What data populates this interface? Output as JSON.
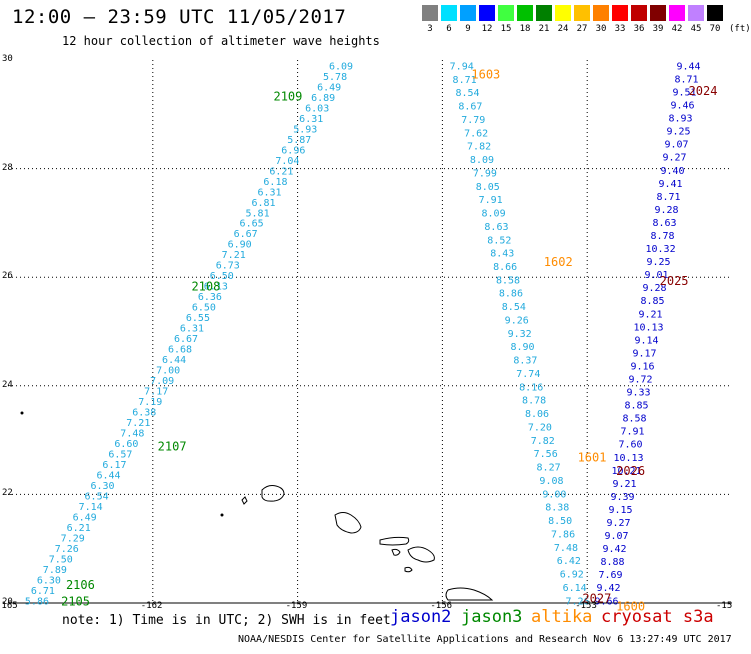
{
  "header": {
    "title": "12:00 — 23:59 UTC 11/05/2017",
    "subtitle": "12 hour collection of altimeter wave heights"
  },
  "color_scale": {
    "unit": "(ft)",
    "bins": [
      {
        "label": "3",
        "color": "#808080"
      },
      {
        "label": "6",
        "color": "#00e0ff"
      },
      {
        "label": "9",
        "color": "#00a0ff"
      },
      {
        "label": "12",
        "color": "#0000ff"
      },
      {
        "label": "15",
        "color": "#40ff40"
      },
      {
        "label": "18",
        "color": "#00c000"
      },
      {
        "label": "21",
        "color": "#008000"
      },
      {
        "label": "24",
        "color": "#ffff00"
      },
      {
        "label": "27",
        "color": "#ffc000"
      },
      {
        "label": "30",
        "color": "#ff8000"
      },
      {
        "label": "33",
        "color": "#ff0000"
      },
      {
        "label": "36",
        "color": "#c00000"
      },
      {
        "label": "39",
        "color": "#800000"
      },
      {
        "label": "42",
        "color": "#ff00ff"
      },
      {
        "label": "45",
        "color": "#c080ff"
      },
      {
        "label": "70",
        "color": "#000000"
      }
    ]
  },
  "axes": {
    "lat_labels": [
      "30",
      "28",
      "26",
      "24",
      "22",
      "20"
    ],
    "lon_labels": [
      "-165",
      "-162",
      "-159",
      "-156",
      "-153",
      "-15"
    ]
  },
  "chart_data": {
    "type": "scatter",
    "x_range_lon": [
      -165,
      -150
    ],
    "y_range_lat": [
      20,
      30
    ],
    "grid": true,
    "tracks": [
      {
        "color": "#22aadd",
        "lon_top": -158.1,
        "lon_bottom": -164.4,
        "values": [
          "6.09",
          "5.78",
          "6.49",
          "6.89",
          "6.03",
          "6.31",
          "5.93",
          "5.87",
          "6.96",
          "7.04",
          "6.21",
          "6.18",
          "6.31",
          "6.81",
          "5.81",
          "6.65",
          "6.67",
          "6.90",
          "7.21",
          "6.73",
          "6.50",
          "6.13",
          "6.36",
          "6.50",
          "6.55",
          "6.31",
          "6.67",
          "6.68",
          "6.44",
          "7.00",
          "7.09",
          "7.17",
          "7.19",
          "6.38",
          "7.21",
          "7.48",
          "6.60",
          "6.57",
          "6.17",
          "6.44",
          "6.30",
          "6.54",
          "7.14",
          "6.49",
          "6.21",
          "7.29",
          "7.26",
          "7.50",
          "7.89",
          "6.30",
          "6.71",
          "5.86"
        ]
      },
      {
        "color": "#22aadd",
        "lon_top": -155.6,
        "lon_bottom": -153.2,
        "values": [
          "7.94",
          "8.71",
          "8.54",
          "8.67",
          "7.79",
          "7.62",
          "7.82",
          "8.09",
          "7.99",
          "8.05",
          "7.91",
          "8.09",
          "8.63",
          "8.52",
          "8.43",
          "8.66",
          "8.58",
          "8.86",
          "8.54",
          "9.26",
          "9.32",
          "8.90",
          "8.37",
          "7.74",
          "8.16",
          "8.78",
          "8.06",
          "7.20",
          "7.82",
          "7.56",
          "8.27",
          "9.08",
          "9.00",
          "8.38",
          "8.50",
          "7.86",
          "7.48",
          "6.42",
          "6.92",
          "6.14",
          "7.26"
        ]
      },
      {
        "color": "#0000cc",
        "lon_top": -150.9,
        "lon_bottom": -152.6,
        "values": [
          "9.44",
          "8.71",
          "9.51",
          "9.46",
          "8.93",
          "9.25",
          "9.07",
          "9.27",
          "9.40",
          "9.41",
          "8.71",
          "9.28",
          "8.63",
          "8.78",
          "10.32",
          "9.25",
          "9.01",
          "9.28",
          "8.85",
          "9.21",
          "10.13",
          "9.14",
          "9.17",
          "9.16",
          "9.72",
          "9.33",
          "8.85",
          "8.58",
          "7.91",
          "7.60",
          "10.13",
          "10.21",
          "9.21",
          "9.39",
          "9.15",
          "9.27",
          "9.07",
          "9.42",
          "8.88",
          "7.69",
          "9.42",
          "9.66"
        ]
      }
    ],
    "time_labels": [
      {
        "text": "2109",
        "color": "#008800",
        "lon": -159.2,
        "lat": 29.35
      },
      {
        "text": "2108",
        "color": "#008800",
        "lon": -160.9,
        "lat": 25.85
      },
      {
        "text": "2107",
        "color": "#008800",
        "lon": -161.6,
        "lat": 22.9
      },
      {
        "text": "2106",
        "color": "#008800",
        "lon": -163.5,
        "lat": 20.35
      },
      {
        "text": "2105",
        "color": "#008800",
        "lon": -163.6,
        "lat": 20.05
      },
      {
        "text": "1603",
        "color": "#ff8c00",
        "lon": -155.1,
        "lat": 29.75
      },
      {
        "text": "1602",
        "color": "#ff8c00",
        "lon": -153.6,
        "lat": 26.3
      },
      {
        "text": "1601",
        "color": "#ff8c00",
        "lon": -152.9,
        "lat": 22.7
      },
      {
        "text": "1600",
        "color": "#ff8c00",
        "lon": -152.1,
        "lat": 19.95
      },
      {
        "text": "2024",
        "color": "#880000",
        "lon": -150.6,
        "lat": 29.45
      },
      {
        "text": "2025",
        "color": "#880000",
        "lon": -151.2,
        "lat": 25.95
      },
      {
        "text": "2026",
        "color": "#880000",
        "lon": -152.1,
        "lat": 22.45
      },
      {
        "text": "2027",
        "color": "#880000",
        "lon": -152.8,
        "lat": 20.1
      }
    ]
  },
  "footer": {
    "note": "note: 1) Time is in UTC; 2) SWH is in feet",
    "legend": [
      {
        "text": "jason2",
        "color": "#0000cc"
      },
      {
        "text": "jason3",
        "color": "#008800"
      },
      {
        "text": "altika",
        "color": "#ff8c00"
      },
      {
        "text": "cryosat s3a",
        "color": "#cc0000"
      }
    ],
    "credit": "NOAA/NESDIS Center for Satellite Applications and Research   Nov  6 13:27:49 UTC 2017"
  }
}
